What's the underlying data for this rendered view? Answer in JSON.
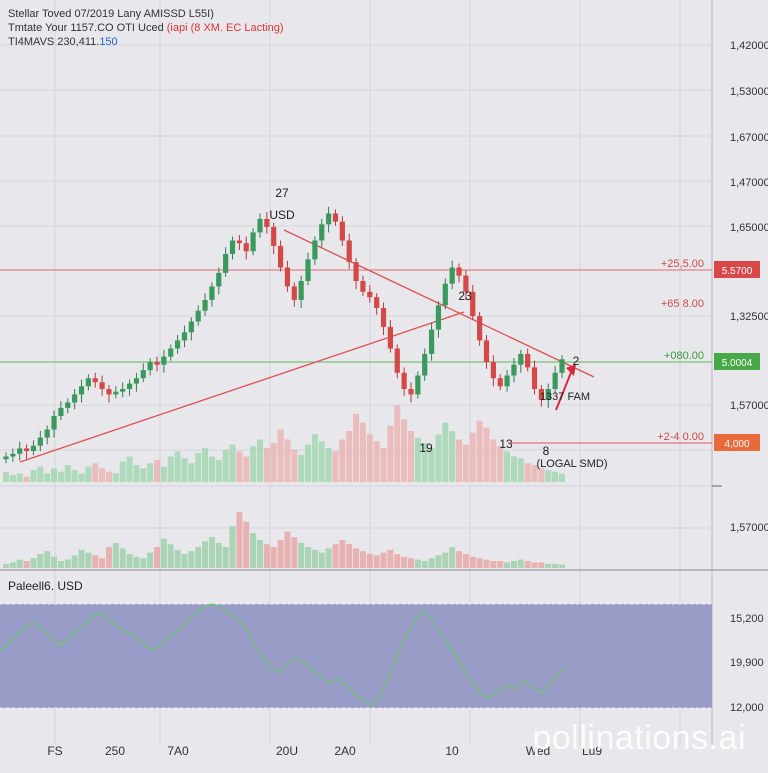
{
  "header": {
    "line1": "Stellar Toved 07/2019 Lany AMISSD L55I)",
    "line2_a": "Tmtate Your 1157.CO OTI Uced",
    "line2_b": "(iapi (8 XM. EC Lacting)",
    "line3_a": "TI4MAVS 230,411.",
    "line3_b": "150"
  },
  "colors": {
    "up": "#3a9a5e",
    "down": "#d44848",
    "resistance": "#e06060",
    "support": "#3aaa3a",
    "oscillator_fill": "#9a9cc8",
    "oscillator_line": "#6cc86c",
    "background": "#e8e8ec"
  },
  "chart_data": {
    "type": "candlestick",
    "price_axis_labels": [
      "1,42000",
      "1,53000",
      "1,67000",
      "1,47000",
      "1,65000",
      "1,32500",
      "1,57000",
      "1,57000"
    ],
    "x_tick_labels": [
      "FS",
      "250",
      "7A0",
      "20U",
      "2A0",
      "10",
      "Wed",
      "Lu9"
    ],
    "horizontal_levels": [
      {
        "label": "+25,5.00",
        "tag": "5.5700",
        "style": "resistance"
      },
      {
        "label": "+65 8.00",
        "tag": "",
        "style": "plain"
      },
      {
        "label": "+080.00",
        "tag": "5.0004",
        "style": "support"
      },
      {
        "label": "+2-4 0.00",
        "tag": "4,000",
        "style": "support-low"
      }
    ],
    "annotations": [
      "27",
      "USD",
      "23",
      "19",
      "13",
      "8",
      "(LOGAL SMD)",
      "1337 FAM",
      "2"
    ],
    "close": [
      110,
      112,
      116,
      114,
      118,
      124,
      130,
      140,
      146,
      150,
      156,
      162,
      168,
      165,
      160,
      156,
      158,
      160,
      164,
      168,
      174,
      180,
      178,
      184,
      190,
      196,
      202,
      210,
      218,
      226,
      236,
      246,
      260,
      270,
      268,
      262,
      276,
      286,
      280,
      266,
      250,
      236,
      226,
      240,
      256,
      270,
      282,
      290,
      284,
      270,
      254,
      240,
      232,
      228,
      220,
      206,
      190,
      172,
      160,
      156,
      170,
      186,
      204,
      222,
      238,
      250,
      244,
      232,
      214,
      196,
      180,
      168,
      162,
      170,
      178,
      186,
      176,
      160,
      152,
      160,
      172,
      182
    ],
    "volume": [
      0.12,
      0.08,
      0.1,
      0.06,
      0.14,
      0.18,
      0.1,
      0.16,
      0.12,
      0.2,
      0.14,
      0.1,
      0.18,
      0.22,
      0.16,
      0.12,
      0.1,
      0.24,
      0.3,
      0.2,
      0.16,
      0.22,
      0.26,
      0.18,
      0.3,
      0.36,
      0.28,
      0.22,
      0.34,
      0.4,
      0.3,
      0.26,
      0.38,
      0.44,
      0.36,
      0.3,
      0.42,
      0.5,
      0.4,
      0.46,
      0.62,
      0.5,
      0.38,
      0.32,
      0.44,
      0.56,
      0.48,
      0.4,
      0.36,
      0.5,
      0.6,
      0.8,
      0.7,
      0.56,
      0.48,
      0.4,
      0.66,
      0.9,
      0.74,
      0.6,
      0.52,
      0.46,
      0.4,
      0.56,
      0.7,
      0.6,
      0.5,
      0.44,
      0.58,
      0.72,
      0.64,
      0.5,
      0.42,
      0.36,
      0.3,
      0.28,
      0.22,
      0.2,
      0.16,
      0.14,
      0.12,
      0.1
    ],
    "volume2": [
      0.06,
      0.08,
      0.12,
      0.1,
      0.14,
      0.2,
      0.24,
      0.16,
      0.1,
      0.12,
      0.18,
      0.26,
      0.22,
      0.18,
      0.14,
      0.3,
      0.36,
      0.28,
      0.2,
      0.16,
      0.14,
      0.22,
      0.3,
      0.42,
      0.34,
      0.26,
      0.2,
      0.24,
      0.3,
      0.38,
      0.44,
      0.36,
      0.3,
      0.6,
      0.8,
      0.66,
      0.5,
      0.4,
      0.34,
      0.3,
      0.4,
      0.52,
      0.44,
      0.36,
      0.3,
      0.26,
      0.22,
      0.28,
      0.34,
      0.4,
      0.34,
      0.28,
      0.24,
      0.2,
      0.18,
      0.22,
      0.26,
      0.2,
      0.16,
      0.14,
      0.12,
      0.1,
      0.14,
      0.18,
      0.22,
      0.3,
      0.24,
      0.2,
      0.16,
      0.14,
      0.12,
      0.1,
      0.1,
      0.08,
      0.1,
      0.12,
      0.1,
      0.08,
      0.08,
      0.06,
      0.06,
      0.05
    ],
    "oscillator": {
      "title": "Paleell6. USD",
      "axis_labels": [
        "15,200",
        "19,900",
        "12,000"
      ],
      "values": [
        0.55,
        0.62,
        0.7,
        0.78,
        0.82,
        0.76,
        0.68,
        0.6,
        0.66,
        0.74,
        0.8,
        0.88,
        0.92,
        0.84,
        0.78,
        0.72,
        0.7,
        0.62,
        0.56,
        0.6,
        0.68,
        0.74,
        0.82,
        0.9,
        0.96,
        1.0,
        0.98,
        0.92,
        0.86,
        0.78,
        0.62,
        0.5,
        0.4,
        0.34,
        0.42,
        0.48,
        0.44,
        0.36,
        0.3,
        0.24,
        0.28,
        0.22,
        0.14,
        0.08,
        0.02,
        0.12,
        0.3,
        0.5,
        0.68,
        0.82,
        0.94,
        0.86,
        0.74,
        0.62,
        0.5,
        0.36,
        0.24,
        0.14,
        0.1,
        0.16,
        0.22,
        0.18,
        0.26,
        0.2,
        0.14,
        0.22,
        0.32,
        0.4
      ]
    }
  }
}
